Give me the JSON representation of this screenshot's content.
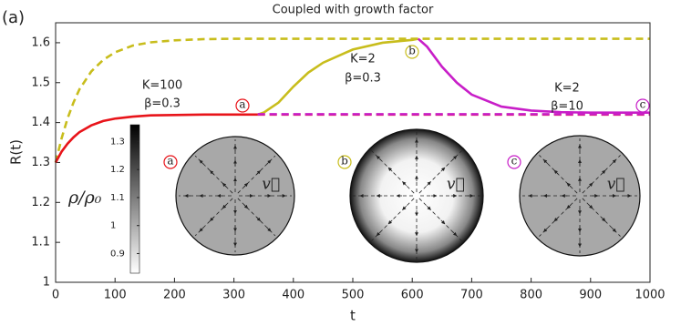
{
  "chart_data": {
    "type": "line",
    "panel_label": "(a)",
    "title": "Coupled with growth factor",
    "x_label": "t",
    "y_label": "R(t)",
    "xlim": [
      0,
      1000
    ],
    "xticks": [
      0,
      100,
      200,
      300,
      400,
      500,
      600,
      700,
      800,
      900,
      1000
    ],
    "ylim": [
      1,
      1.65
    ],
    "yticks": [
      1,
      1.1,
      1.2,
      1.3,
      1.4,
      1.5,
      1.6
    ],
    "grid": false,
    "series": [
      {
        "color": "#c8bd1c",
        "dashed": true,
        "x": [
          0,
          10,
          20,
          30,
          40,
          60,
          80,
          100,
          130,
          160,
          200,
          250,
          300,
          1000
        ],
        "values": [
          1.3,
          1.36,
          1.41,
          1.45,
          1.483,
          1.528,
          1.557,
          1.576,
          1.593,
          1.601,
          1.606,
          1.609,
          1.61,
          1.61
        ]
      },
      {
        "color": "#e8141a",
        "dashed": false,
        "x": [
          0,
          10,
          20,
          30,
          40,
          60,
          80,
          100,
          130,
          160,
          200,
          250,
          300,
          340
        ],
        "values": [
          1.3,
          1.327,
          1.347,
          1.363,
          1.376,
          1.393,
          1.404,
          1.41,
          1.415,
          1.418,
          1.419,
          1.42,
          1.42,
          1.42
        ]
      },
      {
        "color": "#c8bd1c",
        "dashed": false,
        "x": [
          340,
          350,
          375,
          400,
          425,
          450,
          500,
          550,
          600,
          610
        ],
        "values": [
          1.42,
          1.425,
          1.45,
          1.49,
          1.525,
          1.55,
          1.583,
          1.6,
          1.607,
          1.61
        ]
      },
      {
        "color": "#c81ec8",
        "dashed": false,
        "x": [
          610,
          625,
          650,
          675,
          700,
          750,
          800,
          850,
          900,
          1000
        ],
        "values": [
          1.61,
          1.59,
          1.54,
          1.5,
          1.47,
          1.44,
          1.43,
          1.426,
          1.425,
          1.425
        ]
      },
      {
        "color": "#e8141a",
        "dashed": true,
        "x": [
          340,
          1000
        ],
        "values": [
          1.42,
          1.42
        ]
      },
      {
        "color": "#c81ec8",
        "dashed": true,
        "x": [
          340,
          1000
        ],
        "values": [
          1.421,
          1.421
        ]
      }
    ],
    "annotations": [
      {
        "text": "K=100",
        "color": "#e8141a"
      },
      {
        "text": "β=0.3",
        "color": "#e8141a"
      },
      {
        "text": "K=2",
        "color": "#c8bd1c"
      },
      {
        "text": "β=0.3",
        "color": "#c8bd1c"
      },
      {
        "text": "K=2",
        "color": "#c81ec8"
      },
      {
        "text": "β=10",
        "color": "#c81ec8"
      }
    ],
    "markers": [
      {
        "text": "a",
        "color": "#e8141a"
      },
      {
        "text": "b",
        "color": "#c8bd1c"
      },
      {
        "text": "c",
        "color": "#c81ec8"
      }
    ],
    "vector_label": "v⃗",
    "colorbar": {
      "label": "ρ/ρ₀",
      "lim": [
        0.83,
        1.36
      ],
      "ticks": [
        0.9,
        1,
        1.1,
        1.2,
        1.3
      ]
    }
  }
}
